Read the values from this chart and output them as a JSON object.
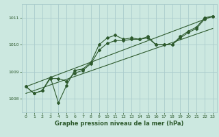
{
  "xlabel": "Graphe pression niveau de la mer (hPa)",
  "bg_color": "#cce8e0",
  "grid_color": "#aacccc",
  "line_color": "#2d5a2d",
  "text_color": "#2d5a2d",
  "xlim": [
    -0.5,
    23.5
  ],
  "ylim": [
    1007.5,
    1011.5
  ],
  "yticks": [
    1008,
    1009,
    1010,
    1011
  ],
  "xticks": [
    0,
    1,
    2,
    3,
    4,
    5,
    6,
    7,
    8,
    9,
    10,
    11,
    12,
    13,
    14,
    15,
    16,
    17,
    18,
    19,
    20,
    21,
    22,
    23
  ],
  "line1_x": [
    0,
    1,
    2,
    3,
    4,
    5,
    6,
    7,
    8,
    9,
    10,
    11,
    12,
    13,
    14,
    15,
    16,
    17,
    18,
    19,
    20,
    21,
    22,
    23
  ],
  "line1_y": [
    1008.45,
    1008.2,
    1008.3,
    1008.8,
    1007.85,
    1008.5,
    1009.05,
    1009.1,
    1009.35,
    1010.0,
    1010.25,
    1010.35,
    1010.2,
    1010.25,
    1010.2,
    1010.3,
    1010.0,
    1010.0,
    1010.0,
    1010.3,
    1010.5,
    1010.65,
    1011.0,
    1011.05
  ],
  "line2_x": [
    0,
    1,
    2,
    3,
    4,
    5,
    6,
    7,
    8,
    9,
    10,
    11,
    12,
    13,
    14,
    15,
    16,
    17,
    18,
    19,
    20,
    21,
    22,
    23
  ],
  "line2_y": [
    1008.45,
    1008.2,
    1008.3,
    1008.75,
    1008.75,
    1008.65,
    1008.95,
    1009.05,
    1009.3,
    1009.8,
    1010.05,
    1010.15,
    1010.15,
    1010.2,
    1010.2,
    1010.25,
    1010.0,
    1010.0,
    1010.0,
    1010.25,
    1010.45,
    1010.6,
    1010.95,
    1011.05
  ],
  "trend1_x": [
    0,
    23
  ],
  "trend1_y": [
    1008.45,
    1011.05
  ],
  "trend2_x": [
    0,
    23
  ],
  "trend2_y": [
    1008.2,
    1010.6
  ]
}
